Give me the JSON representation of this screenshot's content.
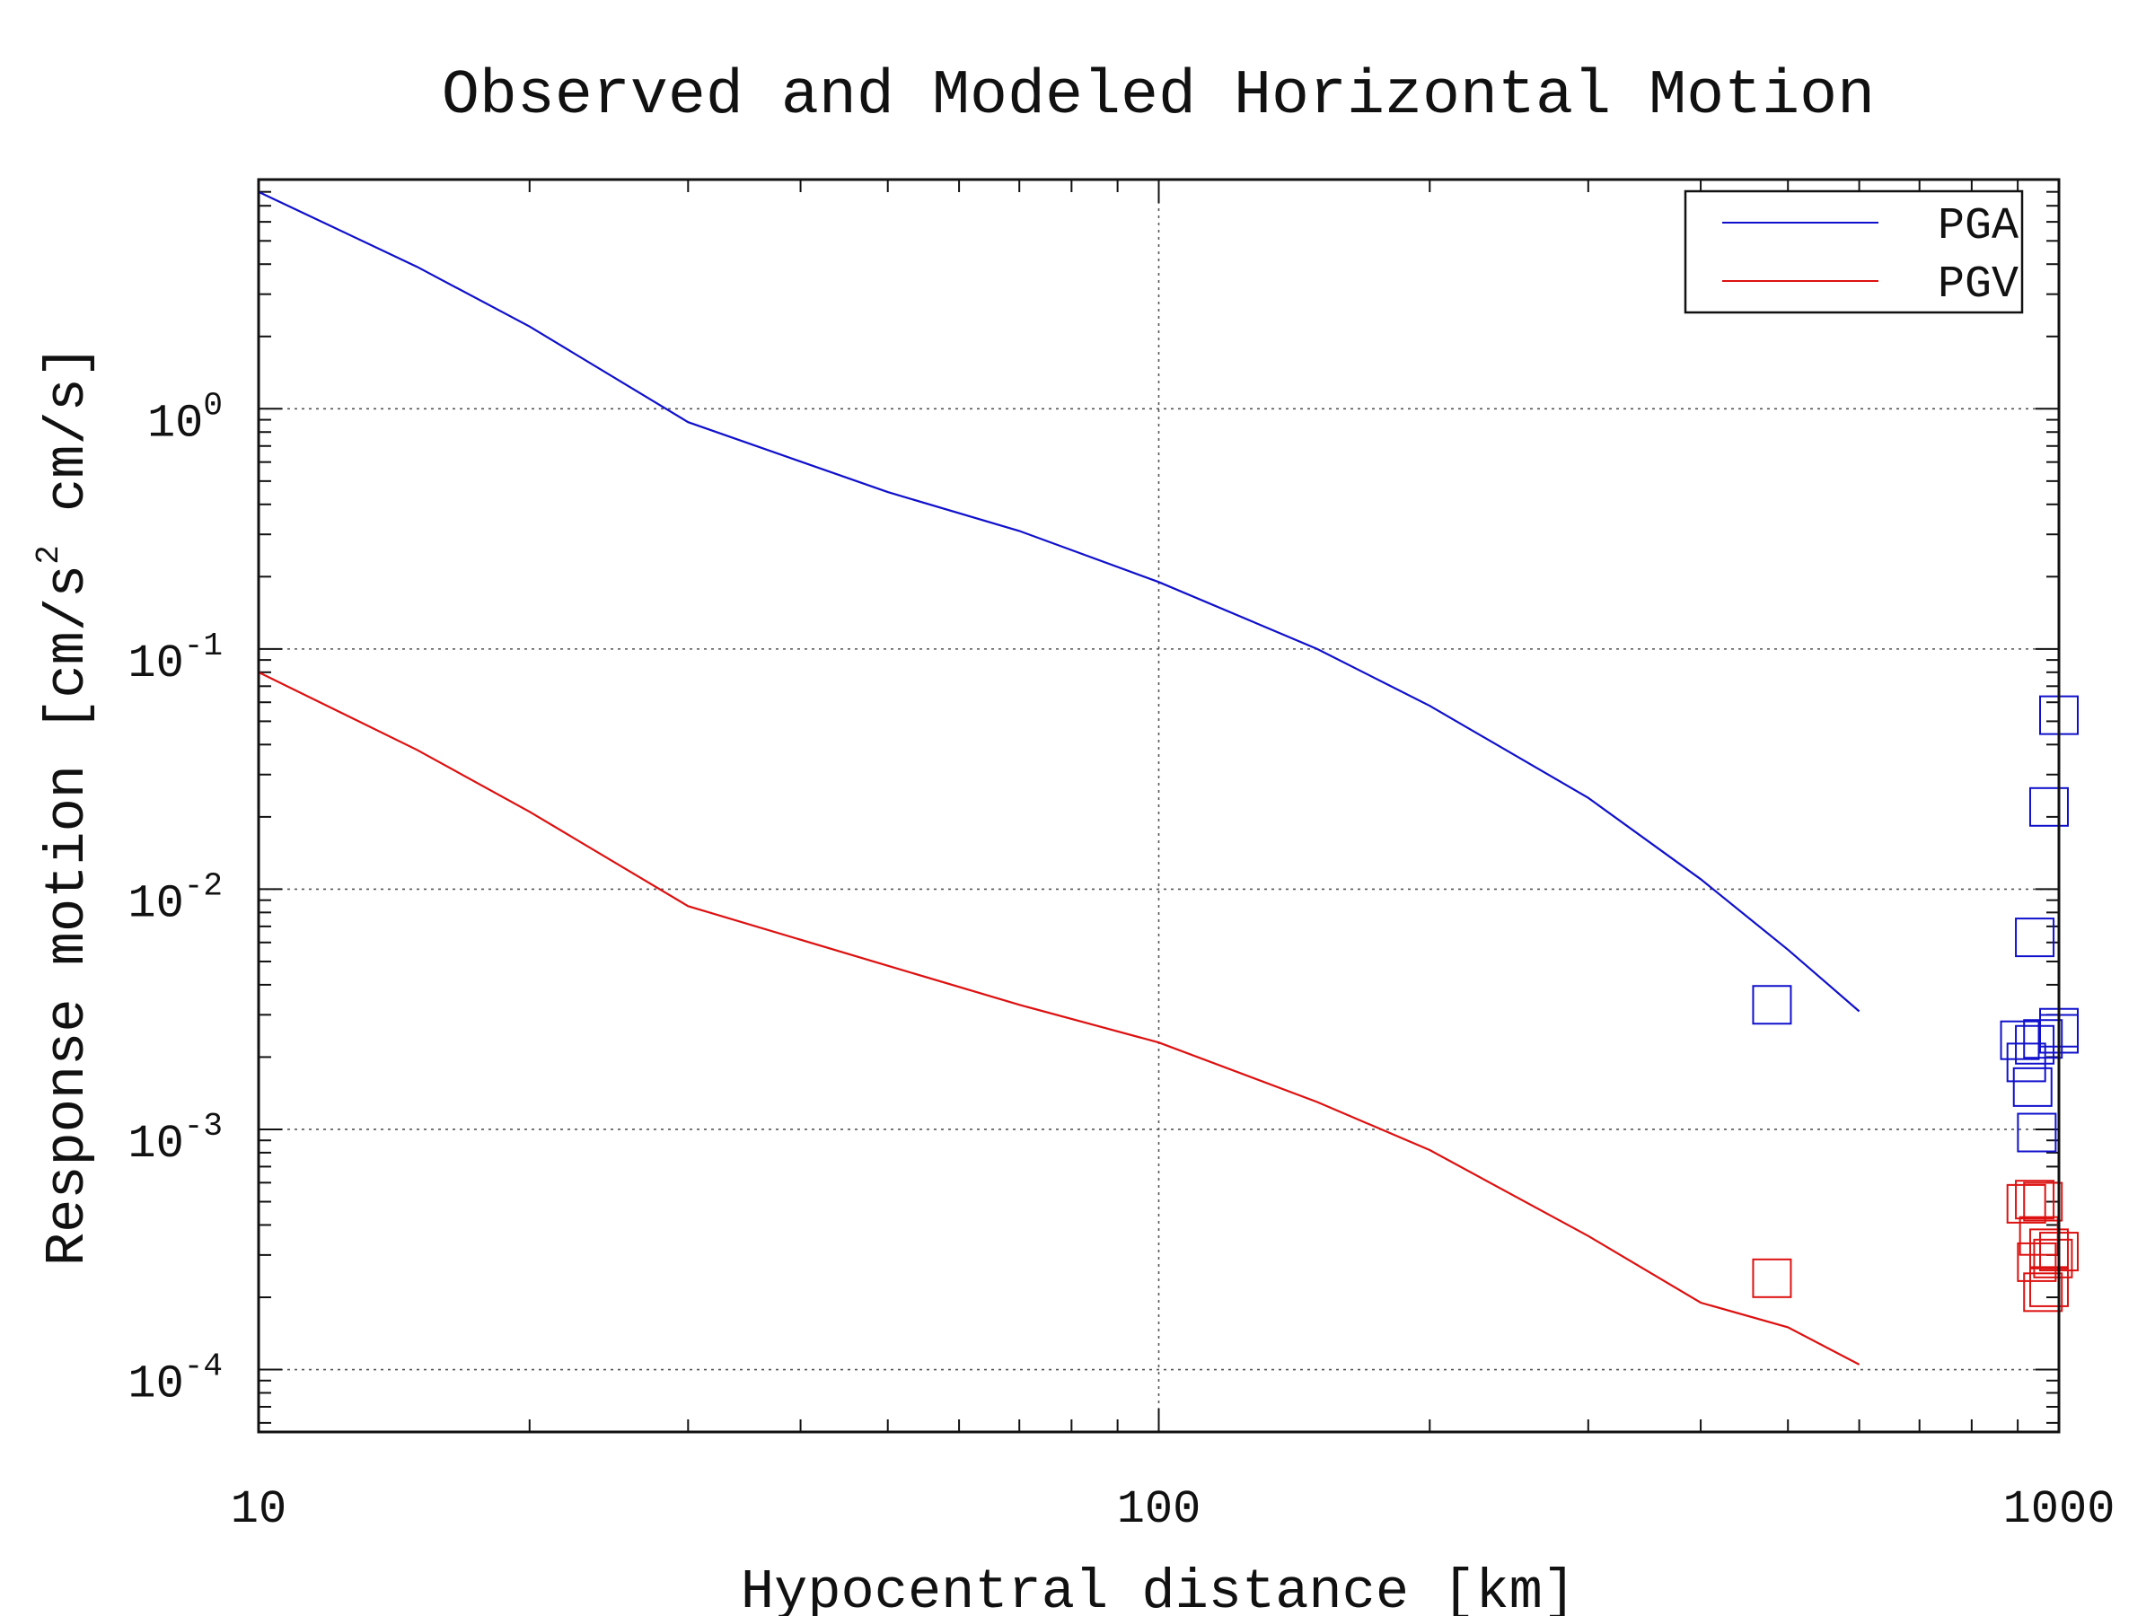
{
  "chart_data": {
    "type": "scatter",
    "title": "Observed and Modeled Horizontal Motion",
    "xlabel": "Hypocentral distance [km]",
    "ylabel": {
      "part1": "Response motion [cm/s",
      "sup": "2",
      "part2": "  cm/s]"
    },
    "x_scale": "log",
    "y_scale": "log",
    "xlim": [
      10,
      1000
    ],
    "ylim": [
      5.5e-05,
      9
    ],
    "x_ticks": [
      {
        "value": 10,
        "label": "10"
      },
      {
        "value": 100,
        "label": "100"
      },
      {
        "value": 1000,
        "label": "1000"
      }
    ],
    "y_ticks": [
      {
        "value": 0.0001,
        "base": "10",
        "exp": "-4"
      },
      {
        "value": 0.001,
        "base": "10",
        "exp": "-3"
      },
      {
        "value": 0.01,
        "base": "10",
        "exp": "-2"
      },
      {
        "value": 0.1,
        "base": "10",
        "exp": "-1"
      },
      {
        "value": 1,
        "base": "10",
        "exp": "0"
      }
    ],
    "grid": "dotted",
    "legend_position": "top-right",
    "series": [
      {
        "name": "PGA",
        "color": "#1010cc",
        "curve": {
          "x": [
            10,
            15,
            20,
            30,
            50,
            70,
            100,
            150,
            200,
            300,
            400,
            500,
            600
          ],
          "y": [
            8,
            3.9,
            2.2,
            0.88,
            0.45,
            0.31,
            0.19,
            0.1,
            0.058,
            0.024,
            0.011,
            0.0056,
            0.0031
          ]
        },
        "observed": {
          "x": [
            480,
            975,
            940,
            1000,
            1000,
            920,
            940,
            905,
            960,
            1000,
            935,
            945
          ],
          "y": [
            0.0033,
            0.022,
            0.0063,
            0.053,
            0.00265,
            0.0019,
            0.00225,
            0.00235,
            0.00238,
            0.0025,
            0.0015,
            0.00097
          ]
        }
      },
      {
        "name": "PGV",
        "color": "#dd1111",
        "curve": {
          "x": [
            10,
            15,
            20,
            30,
            50,
            70,
            100,
            150,
            200,
            300,
            400,
            500,
            600
          ],
          "y": [
            0.08,
            0.038,
            0.021,
            0.0085,
            0.0048,
            0.0033,
            0.0023,
            0.0013,
            0.00082,
            0.00036,
            0.00019,
            0.00015,
            0.000105
          ]
        },
        "observed": {
          "x": [
            480,
            920,
            960,
            940,
            950,
            975,
            1000,
            945,
            985,
            975,
            960
          ],
          "y": [
            0.00024,
            0.00049,
            0.0005,
            0.00051,
            0.00036,
            0.00032,
            0.00031,
            0.00028,
            0.00029,
            0.00022,
            0.00021
          ]
        }
      }
    ]
  }
}
